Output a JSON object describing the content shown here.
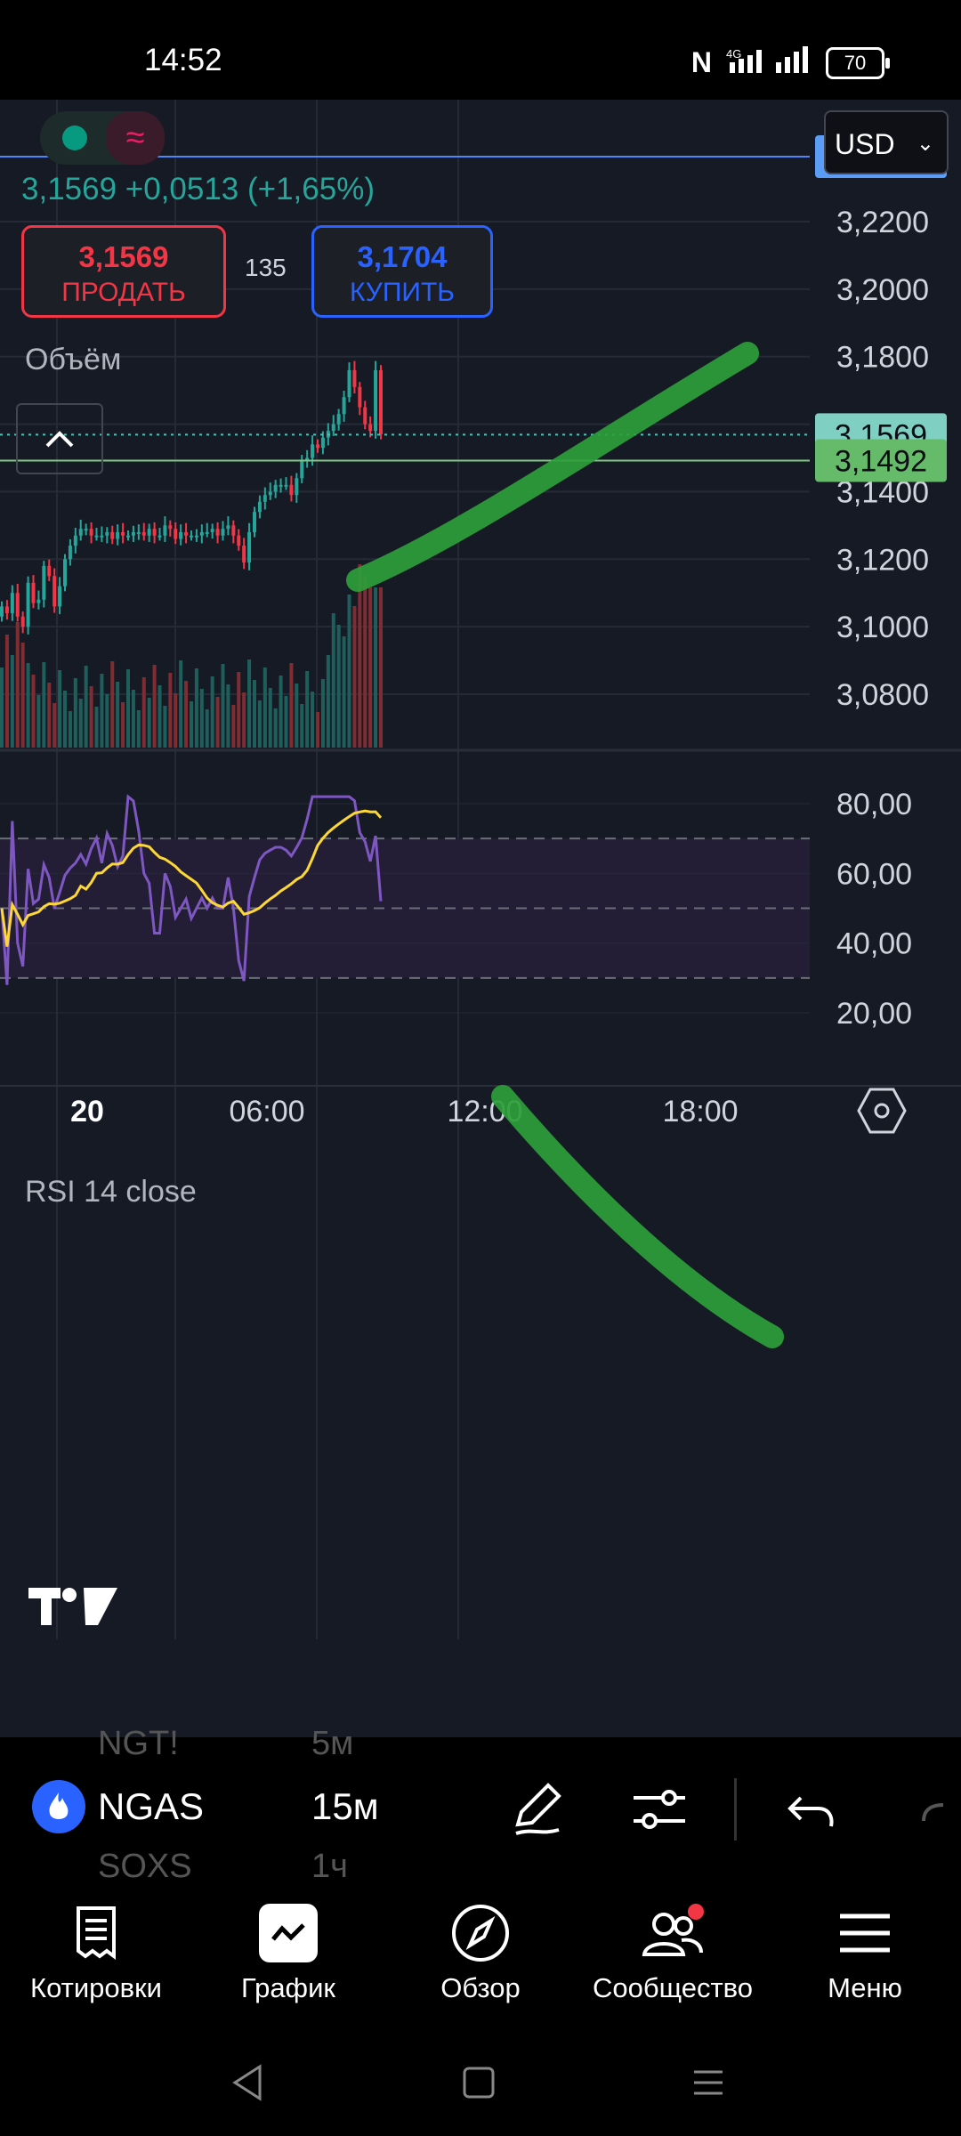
{
  "status": {
    "time": "14:52",
    "battery": "70",
    "nfc": "N"
  },
  "header": {
    "price_change": "3,1569  +0,0513 (+1,65%)",
    "sell": {
      "price": "3,1569",
      "label": "ПРОДАТЬ"
    },
    "spread": "135",
    "buy": {
      "price": "3,1704",
      "label": "КУПИТЬ"
    },
    "currency": "USD",
    "currency_chevron": "chevron-down-icon"
  },
  "volume_label": "Объём",
  "rsi_label": "RSI 14 close",
  "price_tags": {
    "alert": "3,2400",
    "last": "3,1569",
    "level": "3,1492"
  },
  "price_axis": [
    "3,2200",
    "3,2000",
    "3,1800",
    "3,1400",
    "3,1200",
    "3,1000",
    "3,0800"
  ],
  "partial_axis_label": "3,1600",
  "rsi_axis": [
    "80,00",
    "60,00",
    "40,00",
    "20,00"
  ],
  "time_axis": [
    "20",
    "06:00",
    "12:00",
    "18:00"
  ],
  "logo": "TV",
  "symbol_bar": {
    "symbol": "NGAS",
    "interval": "15м",
    "prev_symbol": "NGT!",
    "prev_interval": "5м",
    "next_symbol": "SOXS",
    "next_interval": "1ч"
  },
  "nav": [
    {
      "label": "Котировки",
      "icon": "quotes-icon"
    },
    {
      "label": "График",
      "icon": "chart-icon"
    },
    {
      "label": "Обзор",
      "icon": "compass-icon"
    },
    {
      "label": "Сообщество",
      "icon": "community-icon"
    },
    {
      "label": "Меню",
      "icon": "menu-icon"
    }
  ],
  "colors": {
    "up": "#26a69a",
    "down": "#f23645",
    "accent": "#2962ff",
    "rsi": "#7e57c2",
    "rsi_ma": "#fdd835",
    "level": "#81c784"
  },
  "chart_data": {
    "type": "candlestick",
    "instrument": "NGAS",
    "interval": "15м",
    "x_ticks": [
      "20",
      "06:00",
      "12:00",
      "18:00"
    ],
    "y_ticks": [
      3.08,
      3.1,
      3.12,
      3.14,
      3.16,
      3.18,
      3.2,
      3.22
    ],
    "last_price": 3.1569,
    "horizontal_levels": [
      3.24,
      3.1492
    ],
    "close_series": [
      3.106,
      3.104,
      3.11,
      3.103,
      3.1,
      3.113,
      3.107,
      3.108,
      3.118,
      3.115,
      3.106,
      3.112,
      3.12,
      3.124,
      3.127,
      3.129,
      3.129,
      3.127,
      3.127,
      3.127,
      3.128,
      3.126,
      3.128,
      3.127,
      3.127,
      3.128,
      3.128,
      3.127,
      3.129,
      3.127,
      3.127,
      3.13,
      3.129,
      3.126,
      3.128,
      3.127,
      3.127,
      3.127,
      3.128,
      3.128,
      3.129,
      3.127,
      3.129,
      3.13,
      3.127,
      3.124,
      3.119,
      3.128,
      3.134,
      3.137,
      3.139,
      3.14,
      3.142,
      3.142,
      3.142,
      3.139,
      3.144,
      3.149,
      3.15,
      3.154,
      3.153,
      3.156,
      3.158,
      3.16,
      3.163,
      3.168,
      3.176,
      3.171,
      3.165,
      3.16,
      3.158,
      3.176,
      3.157
    ],
    "rsi": {
      "upper": 70,
      "middle": 50,
      "lower": 30,
      "y_ticks": [
        20,
        40,
        60,
        80
      ],
      "last": 52
    }
  }
}
